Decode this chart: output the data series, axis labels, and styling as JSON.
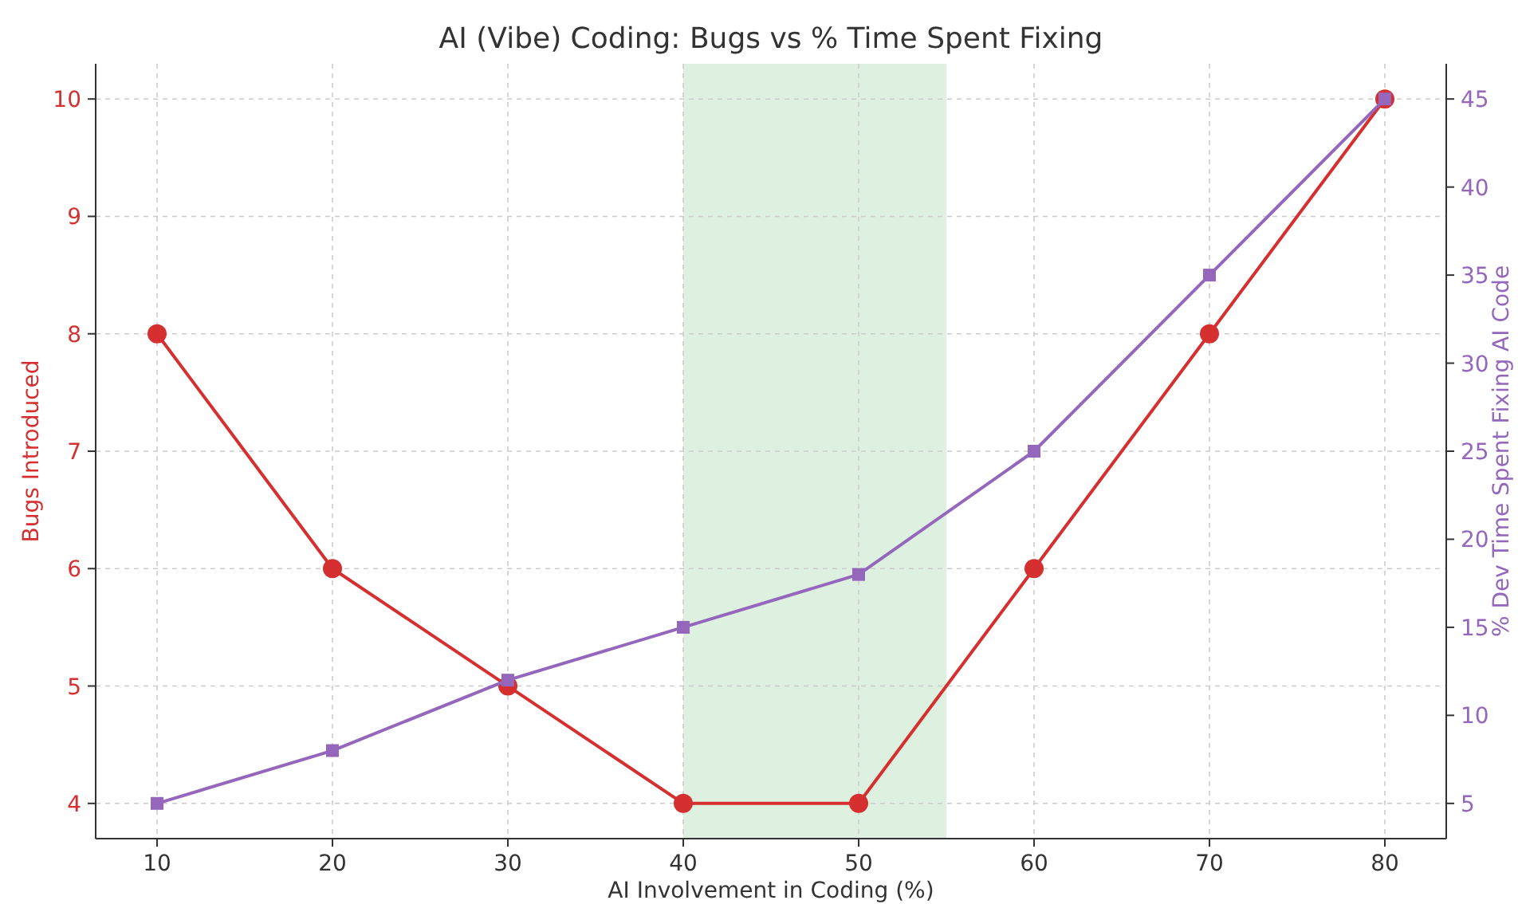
{
  "chart_data": {
    "type": "line",
    "title": "AI (Vibe) Coding: Bugs vs % Time Spent Fixing",
    "xlabel": "AI Involvement in Coding (%)",
    "ylabel": "Bugs Introduced",
    "y2label": "% Dev Time Spent Fixing AI Code",
    "x": [
      10,
      20,
      30,
      40,
      50,
      60,
      70,
      80
    ],
    "series": [
      {
        "color": "#d62f2f",
        "marker": "circle",
        "values": [
          8,
          6,
          5,
          4,
          4,
          6,
          8,
          10
        ]
      },
      {
        "color": "#9467bd",
        "marker": "square",
        "axis": "y2",
        "values": [
          5,
          8,
          12,
          15,
          18,
          25,
          35,
          45
        ]
      }
    ],
    "xlim": [
      6.5,
      83.5
    ],
    "xticks": [
      10,
      20,
      30,
      40,
      50,
      60,
      70,
      80
    ],
    "ylim": [
      3.7,
      10.3
    ],
    "yticks": [
      4,
      5,
      6,
      7,
      8,
      9,
      10
    ],
    "y2lim": [
      3,
      47
    ],
    "y2ticks": [
      5,
      10,
      15,
      20,
      25,
      30,
      35,
      40,
      45
    ],
    "bands": [
      {
        "axis": "x",
        "from": 40,
        "to": 55,
        "color": "#c8e6c9"
      }
    ],
    "grid": true,
    "line_style": "solid"
  }
}
